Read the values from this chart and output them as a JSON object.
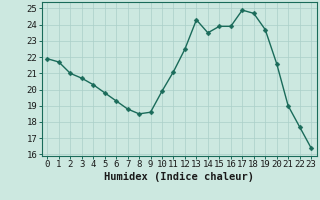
{
  "x": [
    0,
    1,
    2,
    3,
    4,
    5,
    6,
    7,
    8,
    9,
    10,
    11,
    12,
    13,
    14,
    15,
    16,
    17,
    18,
    19,
    20,
    21,
    22,
    23
  ],
  "y": [
    21.9,
    21.7,
    21.0,
    20.7,
    20.3,
    19.8,
    19.3,
    18.8,
    18.5,
    18.6,
    19.9,
    21.1,
    22.5,
    24.3,
    23.5,
    23.9,
    23.9,
    24.9,
    24.7,
    23.7,
    21.6,
    19.0,
    17.7,
    16.4
  ],
  "title": "",
  "xlabel": "Humidex (Indice chaleur)",
  "ylabel": "",
  "xlim": [
    -0.5,
    23.5
  ],
  "ylim": [
    15.9,
    25.4
  ],
  "yticks": [
    16,
    17,
    18,
    19,
    20,
    21,
    22,
    23,
    24,
    25
  ],
  "xticks": [
    0,
    1,
    2,
    3,
    4,
    5,
    6,
    7,
    8,
    9,
    10,
    11,
    12,
    13,
    14,
    15,
    16,
    17,
    18,
    19,
    20,
    21,
    22,
    23
  ],
  "line_color": "#1a6b5a",
  "marker_color": "#1a6b5a",
  "bg_color": "#cce8e0",
  "grid_color": "#aacfc8",
  "tick_fontsize": 6.5,
  "xlabel_fontsize": 7.5,
  "linewidth": 1.0,
  "markersize": 2.5
}
